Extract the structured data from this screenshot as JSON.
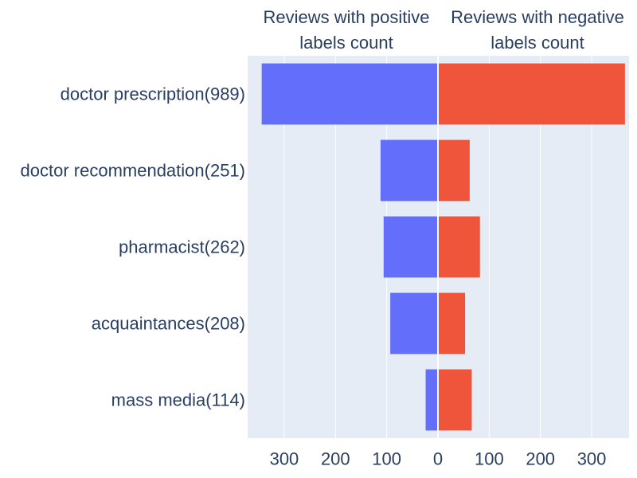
{
  "chart_data": {
    "type": "bar",
    "orientation": "horizontal-diverging",
    "categories": [
      "doctor prescription(989)",
      "doctor recommendation(251)",
      "pharmacist(262)",
      "acquaintances(208)",
      "mass media(114)"
    ],
    "series": [
      {
        "name": "Reviews with positive labels count",
        "values": [
          344,
          112,
          106,
          93,
          24
        ],
        "color": "#636efa",
        "direction": "left"
      },
      {
        "name": "Reviews with negative labels count",
        "values": [
          365,
          62,
          82,
          53,
          66
        ],
        "color": "#ef553b",
        "direction": "right"
      }
    ],
    "header_left": [
      "Reviews with positive",
      "labels count"
    ],
    "header_right": [
      "Reviews with negative",
      "labels count"
    ],
    "xlim": [
      -372,
      372
    ],
    "xticks": [
      -300,
      -200,
      -100,
      0,
      100,
      200,
      300
    ],
    "xtick_labels": [
      "300",
      "200",
      "100",
      "0",
      "100",
      "200",
      "300"
    ],
    "plot_bg": "#e5ecf6",
    "grid": true
  }
}
